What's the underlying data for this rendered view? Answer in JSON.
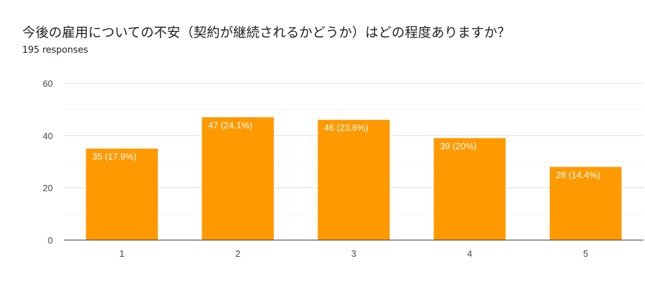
{
  "question": {
    "title": "今後の雇用についての不安（契約が継続されるかどうか）はどの程度ありますか？",
    "responses": "195 responses"
  },
  "chart_data": {
    "type": "bar",
    "title": "今後の雇用についての不安（契約が継続されるかどうか）はどの程度ありますか？",
    "subtitle": "195 responses",
    "categories": [
      "1",
      "2",
      "3",
      "4",
      "5"
    ],
    "values": [
      35,
      47,
      46,
      39,
      28
    ],
    "data_labels": [
      "35 (17.9%)",
      "47 (24.1%)",
      "46 (23.6%)",
      "39 (20%)",
      "28 (14.4%)"
    ],
    "ylim": [
      0,
      60
    ],
    "yticks": [
      0,
      20,
      40,
      60
    ],
    "xlabel": "",
    "ylabel": "",
    "grid": true,
    "legend": "none",
    "colors": {
      "bar": "#ff9900",
      "gridline": "#e0e0e0",
      "minor_gridline": "#f3f3f3",
      "axis": "#333333"
    }
  }
}
